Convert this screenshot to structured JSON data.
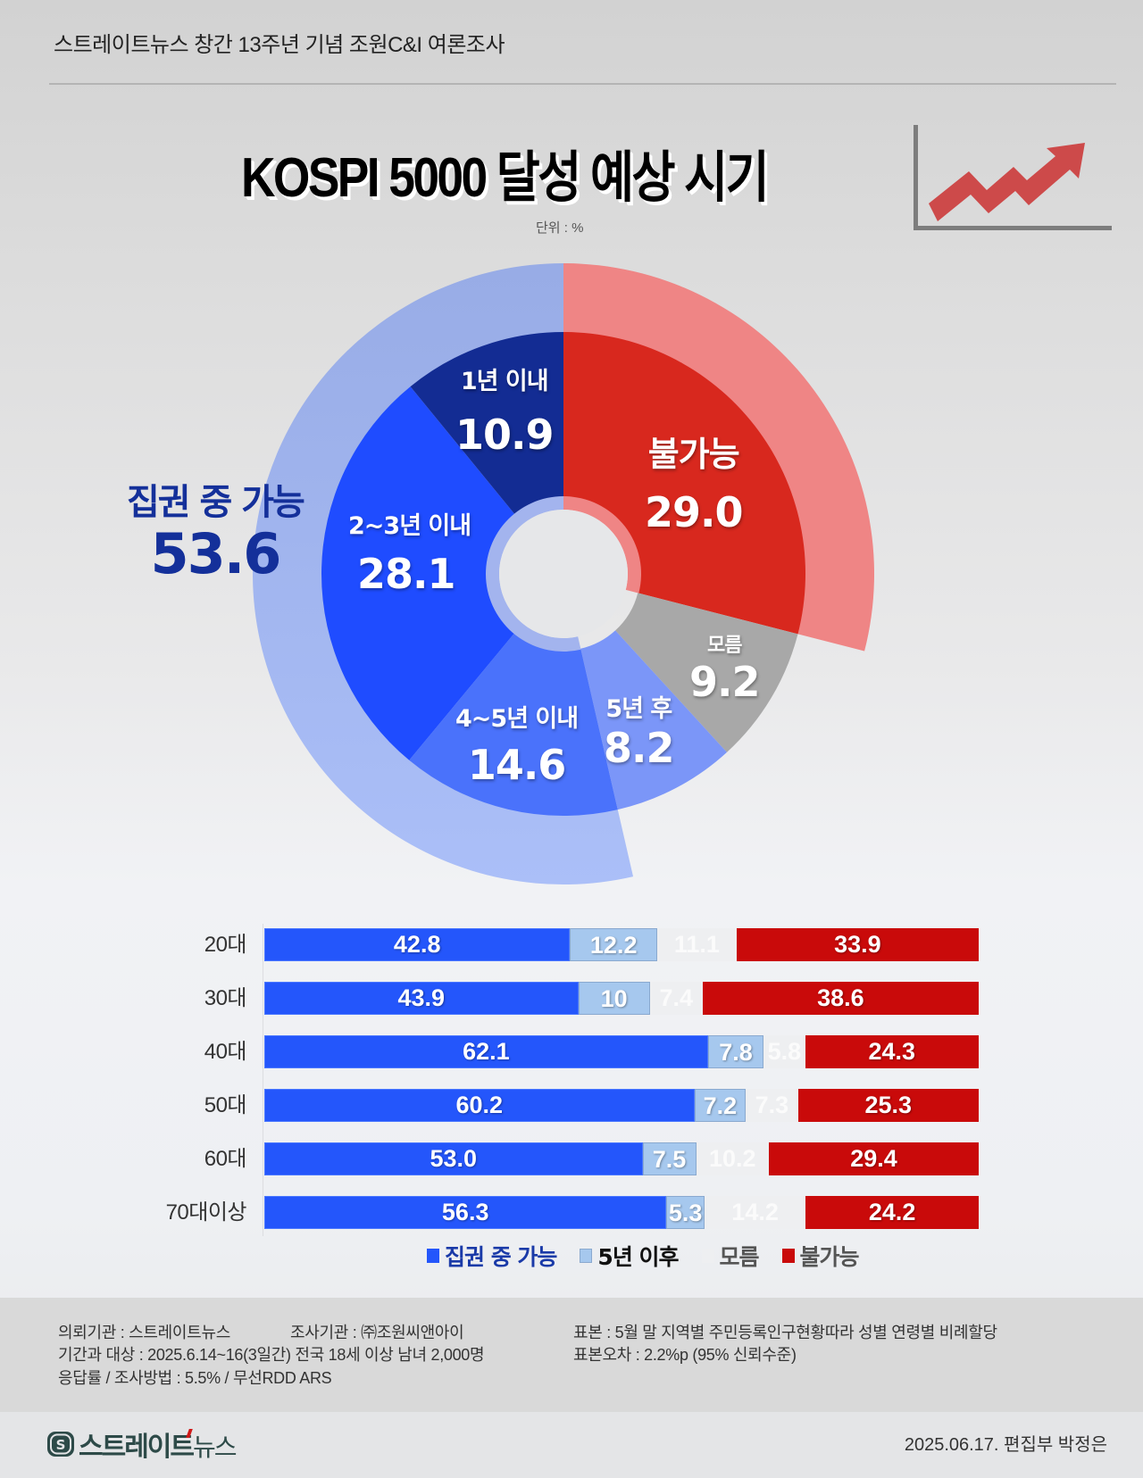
{
  "header": {
    "survey_title": "스트레이트뉴스 창간 13주년 기념 조원C&I 여론조사"
  },
  "title": {
    "main": "KOSPI 5000 달성 예상 시기",
    "unit": "단위 : %"
  },
  "pie": {
    "possible_total_label": "집권 중 가능",
    "possible_total_value": "53.6",
    "slices": [
      {
        "label": "1년 이내",
        "value": "10.9"
      },
      {
        "label": "2~3년 이내",
        "value": "28.1"
      },
      {
        "label": "4~5년 이내",
        "value": "14.6"
      },
      {
        "label": "5년 후",
        "value": "8.2"
      },
      {
        "label": "모름",
        "value": "9.2"
      },
      {
        "label": "불가능",
        "value": "29.0"
      }
    ]
  },
  "bars": {
    "rows": [
      {
        "label": "20대",
        "possible": "42.8",
        "after5": "12.2",
        "unknown": "11.1",
        "impossible": "33.9"
      },
      {
        "label": "30대",
        "possible": "43.9",
        "after5": "10",
        "unknown": "7.4",
        "impossible": "38.6"
      },
      {
        "label": "40대",
        "possible": "62.1",
        "after5": "7.8",
        "unknown": "5.8",
        "impossible": "24.3"
      },
      {
        "label": "50대",
        "possible": "60.2",
        "after5": "7.2",
        "unknown": "7.3",
        "impossible": "25.3"
      },
      {
        "label": "60대",
        "possible": "53.0",
        "after5": "7.5",
        "unknown": "10.2",
        "impossible": "29.4"
      },
      {
        "label": "70대이상",
        "possible": "56.3",
        "after5": "5.3",
        "unknown": "14.2",
        "impossible": "24.2"
      }
    ]
  },
  "legend": {
    "possible": "집권 중 가능",
    "after5": "5년 이후",
    "unknown": "모름",
    "impossible": "불가능"
  },
  "colors": {
    "possible": "#2456fb",
    "after5": "#a6c8ee",
    "unknown": "#eeeff1",
    "impossible": "#c90a0a",
    "pie_1y": "#132c93",
    "pie_2_3y": "#1f4cff",
    "pie_4_5y": "#4a72fb",
    "pie_after5": "#7b96f8",
    "pie_unknown": "#a8a8a8",
    "pie_impossible": "#d8281e",
    "ring_blue": "#9fb3ec",
    "ring_red": "#ef8585"
  },
  "info": {
    "client": "의뢰기관 : 스트레이트뉴스",
    "agency": "조사기관 : ㈜조원씨앤아이",
    "sample": "표본 : 5월 말 지역별 주민등록인구현황따라 성별 연령별 비례할당",
    "period": "기간과 대상 : 2025.6.14~16(3일간)  전국 18세 이상 남녀 2,000명",
    "error": "표본오차 : 2.2%p (95% 신뢰수준)",
    "method": "응답률 / 조사방법 : 5.5% / 무선RDD ARS"
  },
  "footer": {
    "logo_main": "스트레이트",
    "logo_sub": "뉴스",
    "byline": "2025.06.17. 편집부 박정은"
  },
  "chart_data": [
    {
      "type": "pie",
      "title": "KOSPI 5000 달성 예상 시기",
      "unit": "%",
      "categories": [
        "1년 이내",
        "2~3년 이내",
        "4~5년 이내",
        "5년 후",
        "모름",
        "불가능"
      ],
      "values": [
        10.9,
        28.1,
        14.6,
        8.2,
        9.2,
        29.0
      ],
      "outer_ring": [
        {
          "name": "집권 중 가능",
          "value": 53.6
        },
        {
          "name": "불가능",
          "value": 29.0
        }
      ]
    },
    {
      "type": "bar",
      "orientation": "horizontal",
      "stacked": true,
      "categories": [
        "20대",
        "30대",
        "40대",
        "50대",
        "60대",
        "70대이상"
      ],
      "series": [
        {
          "name": "집권 중 가능",
          "values": [
            42.8,
            43.9,
            62.1,
            60.2,
            53.0,
            56.3
          ]
        },
        {
          "name": "5년 이후",
          "values": [
            12.2,
            10,
            7.8,
            7.2,
            7.5,
            5.3
          ]
        },
        {
          "name": "모름",
          "values": [
            11.1,
            7.4,
            5.8,
            7.3,
            10.2,
            14.2
          ]
        },
        {
          "name": "불가능",
          "values": [
            33.9,
            38.6,
            24.3,
            25.3,
            29.4,
            24.2
          ]
        }
      ],
      "legend_position": "bottom",
      "grid": false
    }
  ]
}
